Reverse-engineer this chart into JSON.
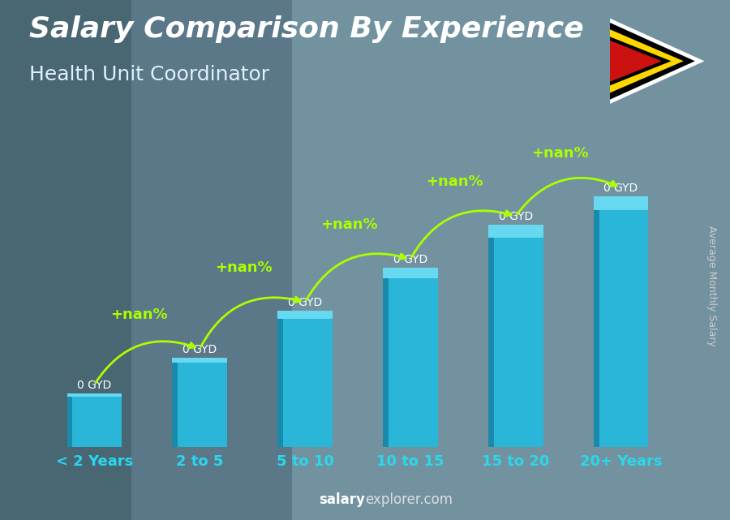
{
  "title": "Salary Comparison By Experience",
  "subtitle": "Health Unit Coordinator",
  "categories": [
    "< 2 Years",
    "2 to 5",
    "5 to 10",
    "10 to 15",
    "15 to 20",
    "20+ Years"
  ],
  "bar_vals": [
    1.5,
    2.5,
    3.8,
    5.0,
    6.2,
    7.0
  ],
  "bar_labels": [
    "0 GYD",
    "0 GYD",
    "0 GYD",
    "0 GYD",
    "0 GYD",
    "0 GYD"
  ],
  "arrow_labels": [
    "+nan%",
    "+nan%",
    "+nan%",
    "+nan%",
    "+nan%"
  ],
  "ylabel": "Average Monthly Salary",
  "watermark": "salaryexplorer.com",
  "bg_color": "#7a9aaa",
  "bar_color_main": "#29b6d8",
  "bar_color_left": "#1a8aaa",
  "bar_color_top": "#66d8f0",
  "title_color": "#ffffff",
  "subtitle_color": "#e0f0ff",
  "bar_label_color": "#ffffff",
  "arrow_label_color": "#aaff00",
  "tick_label_color": "#29d8ee",
  "ylabel_color": "#cccccc",
  "watermark_color_bold": "#ffffff",
  "title_fontsize": 26,
  "subtitle_fontsize": 18,
  "bar_label_fontsize": 10,
  "arrow_label_fontsize": 13,
  "tick_label_fontsize": 13,
  "ylabel_fontsize": 9,
  "watermark_fontsize": 12,
  "ylim_max": 9.0
}
